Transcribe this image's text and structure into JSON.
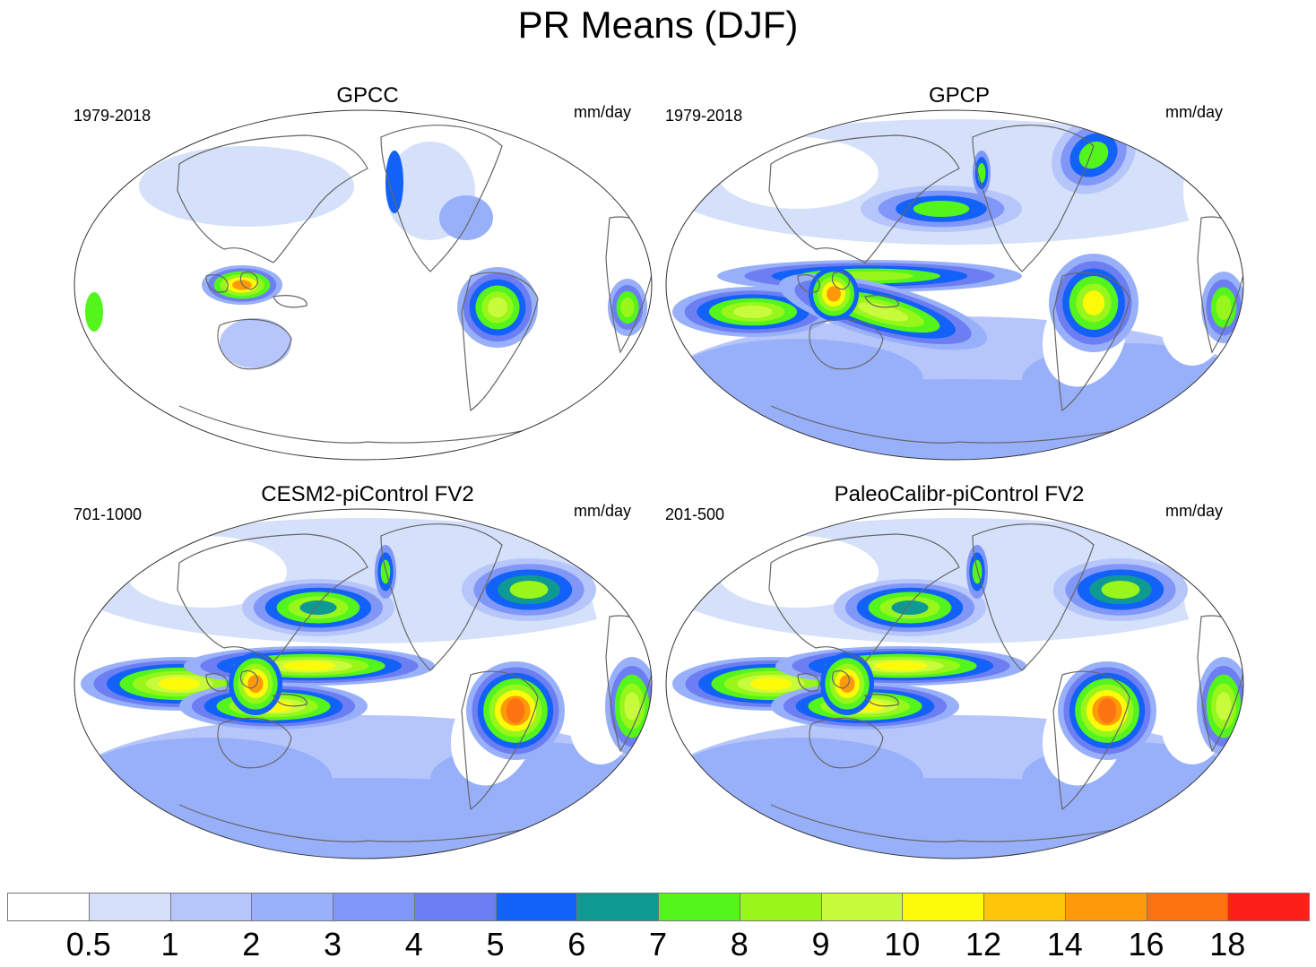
{
  "title": "PR Means (DJF)",
  "panels": [
    {
      "id": "gpcc",
      "title": "GPCC",
      "left_label": "1979-2018",
      "right_label": "mm/day",
      "ocean_data": false,
      "model_style": false
    },
    {
      "id": "gpcp",
      "title": "GPCP",
      "left_label": "1979-2018",
      "right_label": "mm/day",
      "ocean_data": true,
      "model_style": false
    },
    {
      "id": "cesm2",
      "title": "CESM2-piControl FV2",
      "left_label": "701-1000",
      "right_label": "mm/day",
      "ocean_data": true,
      "model_style": true
    },
    {
      "id": "paleo",
      "title": "PaleoCalibr-piControl FV2",
      "left_label": "201-500",
      "right_label": "mm/day",
      "ocean_data": true,
      "model_style": true
    }
  ],
  "colorbar": {
    "tick_labels": [
      "0.5",
      "1",
      "2",
      "3",
      "4",
      "5",
      "6",
      "7",
      "8",
      "9",
      "10",
      "12",
      "14",
      "16",
      "18"
    ],
    "colors": [
      "#ffffff",
      "#d5e0fb",
      "#b6c6fa",
      "#98b0fa",
      "#8197f8",
      "#6c7ef2",
      "#1261f8",
      "#0e9a92",
      "#53f51c",
      "#98f61a",
      "#c8fb3c",
      "#fefb0a",
      "#fec40a",
      "#fe9a0a",
      "#fd7211",
      "#fd2018"
    ]
  }
}
